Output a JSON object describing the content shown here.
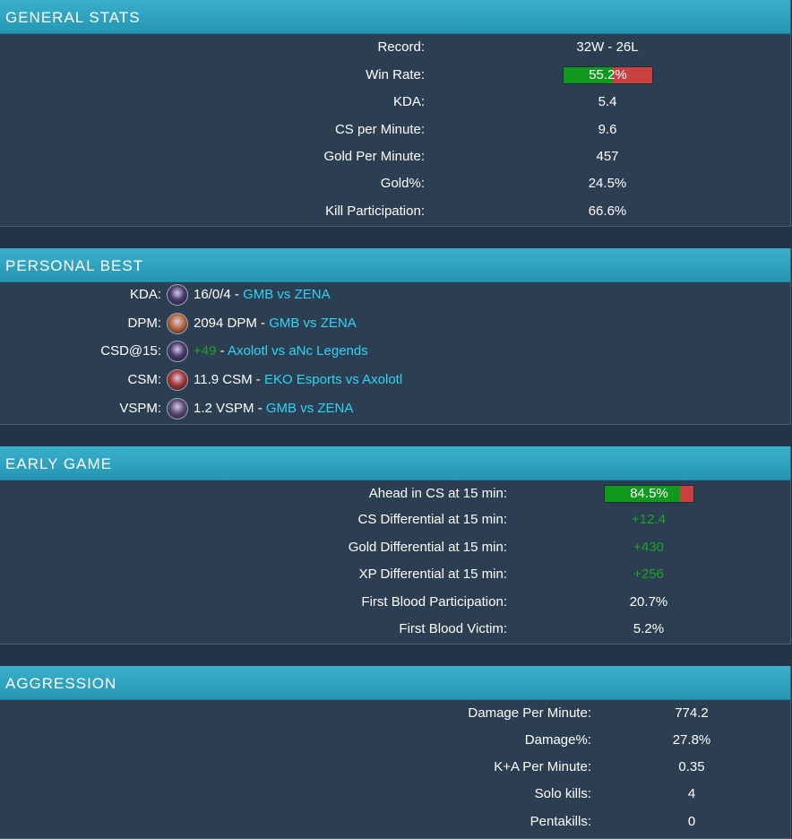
{
  "general": {
    "title": "GENERAL STATS",
    "rows": [
      {
        "label": "Record:",
        "value": "32W - 26L"
      },
      {
        "label": "Win Rate:",
        "value": "55.2%",
        "percent": 55.2
      },
      {
        "label": "KDA:",
        "value": "5.4"
      },
      {
        "label": "CS per Minute:",
        "value": "9.6"
      },
      {
        "label": "Gold Per Minute:",
        "value": "457"
      },
      {
        "label": "Gold%:",
        "value": "24.5%"
      },
      {
        "label": "Kill Participation:",
        "value": "66.6%"
      }
    ]
  },
  "personal_best": {
    "title": "PERSONAL BEST",
    "rows": [
      {
        "label": "KDA:",
        "icon": "champion-portrait-icon",
        "stat": "16/0/4",
        "sep": " - ",
        "match": "GMB vs ZENA",
        "icon_color": "#4a3a6e"
      },
      {
        "label": "DPM:",
        "icon": "champion-portrait-icon",
        "stat": "2094 DPM",
        "sep": " - ",
        "match": "GMB vs ZENA",
        "icon_color": "#b86a3c"
      },
      {
        "label": "CSD@15:",
        "icon": "champion-portrait-icon",
        "stat": "+49",
        "sep": " - ",
        "match": "Axolotl vs aNc Legends",
        "icon_color": "#4a3a6e"
      },
      {
        "label": "CSM:",
        "icon": "champion-portrait-icon",
        "stat": "11.9 CSM",
        "sep": " - ",
        "match": "EKO Esports vs Axolotl",
        "icon_color": "#a83a32"
      },
      {
        "label": "VSPM:",
        "icon": "champion-portrait-icon",
        "stat": "1.2 VSPM",
        "sep": " - ",
        "match": "GMB vs ZENA",
        "icon_color": "#5a4a72"
      }
    ]
  },
  "early_game": {
    "title": "EARLY GAME",
    "rows": [
      {
        "label": "Ahead in CS at 15 min:",
        "value": "84.5%",
        "percent": 84.5
      },
      {
        "label": "CS Differential at 15 min:",
        "value": "+12.4"
      },
      {
        "label": "Gold Differential at 15 min:",
        "value": "+430"
      },
      {
        "label": "XP Differential at 15 min:",
        "value": "+256"
      },
      {
        "label": "First Blood Participation:",
        "value": "20.7%"
      },
      {
        "label": "First Blood Victim:",
        "value": "5.2%"
      }
    ]
  },
  "aggression": {
    "title": "AGGRESSION",
    "rows": [
      {
        "label": "Damage Per Minute:",
        "value": "774.2"
      },
      {
        "label": "Damage%:",
        "value": "27.8%"
      },
      {
        "label": "K+A Per Minute:",
        "value": "0.35"
      },
      {
        "label": "Solo kills:",
        "value": "4"
      },
      {
        "label": "Pentakills:",
        "value": "0"
      }
    ]
  },
  "colors": {
    "header": "#2aa3c2",
    "panel": "#2c3e52",
    "positive": "#1fa12a",
    "link": "#2fd4f5",
    "bar_win": "#0f9a1e",
    "bar_loss": "#c94040"
  }
}
